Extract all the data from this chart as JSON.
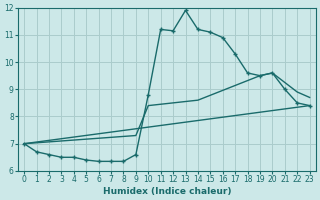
{
  "xlabel": "Humidex (Indice chaleur)",
  "bg_color": "#cce8e8",
  "grid_color": "#aacccc",
  "line_color": "#1a6b6b",
  "xlim": [
    -0.5,
    23.5
  ],
  "ylim": [
    6,
    12
  ],
  "xticks": [
    0,
    1,
    2,
    3,
    4,
    5,
    6,
    7,
    8,
    9,
    10,
    11,
    12,
    13,
    14,
    15,
    16,
    17,
    18,
    19,
    20,
    21,
    22,
    23
  ],
  "yticks": [
    6,
    7,
    8,
    9,
    10,
    11,
    12
  ],
  "line1_x": [
    0,
    1,
    2,
    3,
    4,
    5,
    6,
    7,
    8,
    9,
    10,
    11,
    12,
    13,
    14,
    15,
    16,
    17,
    18,
    19,
    20,
    21,
    22,
    23
  ],
  "line1_y": [
    7.0,
    6.7,
    6.6,
    6.5,
    6.5,
    6.4,
    6.35,
    6.35,
    6.35,
    6.6,
    8.8,
    11.2,
    11.15,
    11.9,
    11.2,
    11.1,
    10.9,
    10.3,
    9.6,
    9.5,
    9.6,
    9.0,
    8.5,
    8.4
  ],
  "line2_x": [
    0,
    23
  ],
  "line2_y": [
    7.0,
    8.4
  ],
  "line3_x": [
    0,
    9,
    10,
    14,
    19,
    20,
    22,
    23
  ],
  "line3_y": [
    7.0,
    7.3,
    8.4,
    8.6,
    9.5,
    9.6,
    8.9,
    8.7
  ]
}
